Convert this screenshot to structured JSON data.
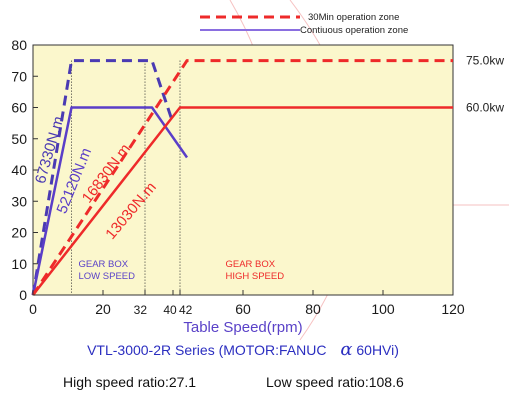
{
  "chart_data": {
    "type": "line",
    "xlabel": "Table Speed(rpm)",
    "xlim": [
      0,
      120
    ],
    "ylim": [
      0,
      80
    ],
    "x_ticks": [
      "0",
      "20",
      "32",
      "40",
      "42",
      "60",
      "80",
      "100",
      "120"
    ],
    "y_ticks": [
      "0",
      "10",
      "20",
      "30",
      "40",
      "50",
      "60",
      "70",
      "80"
    ],
    "grid": false,
    "legend_position": "top-right",
    "legend": [
      {
        "label": "30Min operation zone",
        "style": "dashed"
      },
      {
        "label": "Contiuous operation zone",
        "style": "solid"
      }
    ],
    "series": [
      {
        "zone": "30Min operation zone",
        "speed": "low",
        "color": "#4a3ab3",
        "dash": true,
        "x": [
          0,
          11,
          34,
          40
        ],
        "y": [
          0,
          75,
          75,
          55
        ]
      },
      {
        "zone": "Contiuous operation zone",
        "speed": "low",
        "color": "#5a3ec8",
        "dash": false,
        "x": [
          0,
          11,
          34,
          44
        ],
        "y": [
          0,
          60,
          60,
          44
        ]
      },
      {
        "zone": "30Min operation zone",
        "speed": "high",
        "color": "#ee2a2a",
        "dash": true,
        "x": [
          0,
          44,
          120
        ],
        "y": [
          0,
          75,
          75
        ]
      },
      {
        "zone": "Contiuous operation zone",
        "speed": "high",
        "color": "#ee2a2a",
        "dash": false,
        "x": [
          0,
          42,
          120
        ],
        "y": [
          0,
          60,
          60
        ]
      }
    ],
    "vlines": [
      11,
      32,
      42
    ],
    "annotations": [
      {
        "text": "67330N.m",
        "color": "#4a3ab3",
        "x": 6,
        "y": 46
      },
      {
        "text": "52120N.m",
        "color": "#5a3ec8",
        "x": 13,
        "y": 36
      },
      {
        "text": "16830N.m",
        "color": "#ee2a2a",
        "x": 22,
        "y": 38
      },
      {
        "text": "13030N.m",
        "color": "#ee2a2a",
        "x": 29,
        "y": 26
      }
    ],
    "zone_labels": [
      {
        "lines": [
          "GEAR BOX",
          "LOW SPEED"
        ],
        "color": "#5a42c8",
        "x": 13,
        "y": 9
      },
      {
        "lines": [
          "GEAR BOX",
          "HIGH SPEED"
        ],
        "color": "#ee2a2a",
        "x": 55,
        "y": 9
      }
    ],
    "power_labels": [
      {
        "text": "75.0kw",
        "y": 75
      },
      {
        "text": "60.0kw",
        "y": 60
      }
    ]
  },
  "caption": {
    "series_text": "VTL-3000-2R  Series (MOTOR:FANUC",
    "alpha_symbol": "α",
    "model_text": "60HVi)",
    "high_ratio": "High speed ratio:27.1",
    "low_ratio": "Low speed ratio:108.6"
  },
  "colors": {
    "plot_background": "#fbf7cc",
    "low_speed": "#5a3ec8",
    "high_speed": "#ee2a2a"
  }
}
